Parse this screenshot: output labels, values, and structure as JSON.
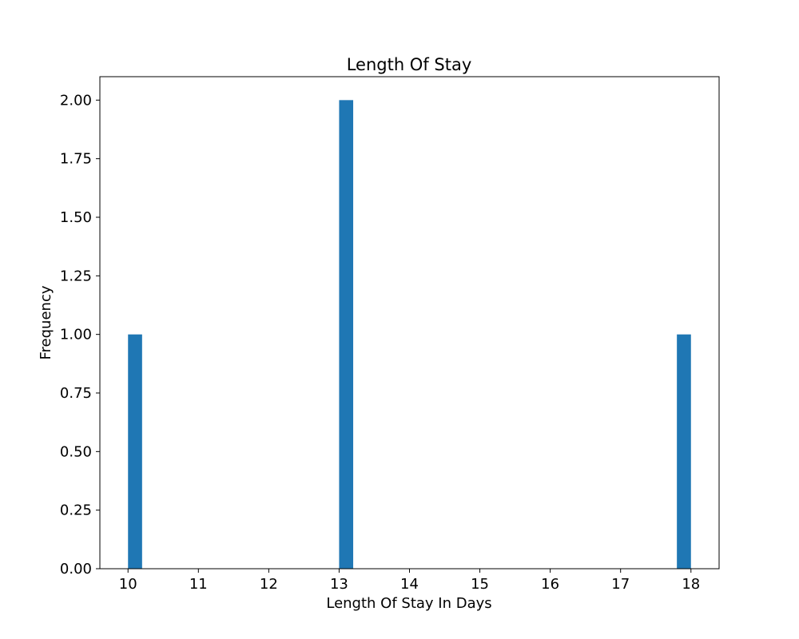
{
  "chart_data": {
    "type": "bar",
    "title": "Length Of Stay",
    "xlabel": "Length Of Stay In Days",
    "ylabel": "Frequency",
    "xlim": [
      9.6,
      18.4
    ],
    "ylim": [
      0,
      2.1
    ],
    "xticks": [
      10,
      11,
      12,
      13,
      14,
      15,
      16,
      17,
      18
    ],
    "xtick_labels": [
      "10",
      "11",
      "12",
      "13",
      "14",
      "15",
      "16",
      "17",
      "18"
    ],
    "yticks": [
      0,
      0.25,
      0.5,
      0.75,
      1.0,
      1.25,
      1.5,
      1.75,
      2.0
    ],
    "ytick_labels": [
      "0.00",
      "0.25",
      "0.50",
      "0.75",
      "1.00",
      "1.25",
      "1.50",
      "1.75",
      "2.00"
    ],
    "bin_width": 0.2,
    "bars": [
      {
        "x_start": 10.0,
        "x_end": 10.2,
        "value": 1
      },
      {
        "x_start": 13.0,
        "x_end": 13.2,
        "value": 2
      },
      {
        "x_start": 17.8,
        "x_end": 18.0,
        "value": 1
      }
    ],
    "bar_color": "#1f77b4",
    "grid": false,
    "legend": "none"
  }
}
